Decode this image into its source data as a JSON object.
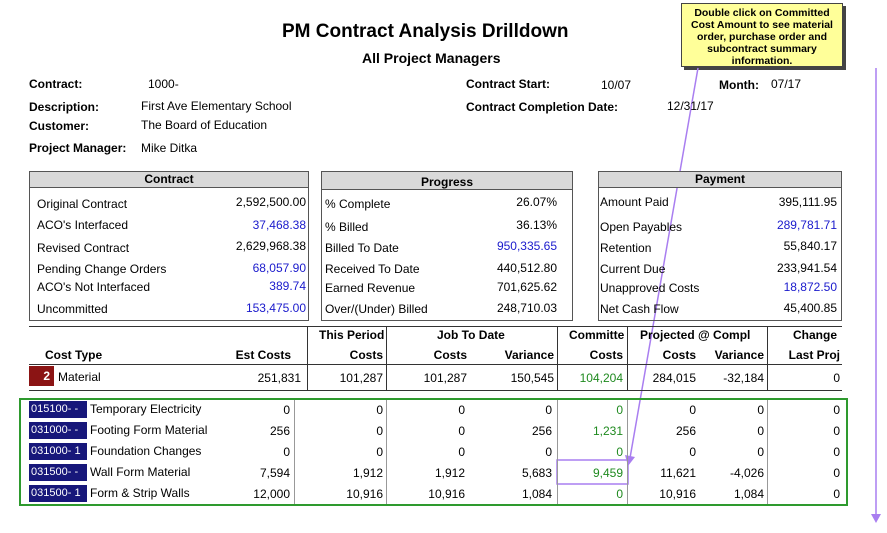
{
  "report": {
    "title": "PM Contract Analysis Drilldown",
    "subtitle": "All Project Managers"
  },
  "callout": "Double click on Committed Cost Amount to see material order, purchase order and subcontract summary information.",
  "header": {
    "contract_label": "Contract:",
    "contract_value": "1000-",
    "description_label": "Description:",
    "description_value": "First Ave Elementary School",
    "customer_label": "Customer:",
    "customer_value": "The Board of Education",
    "pm_label": "Project Manager:",
    "pm_value": "Mike Ditka",
    "start_label": "Contract Start:",
    "start_value": "10/07",
    "month_label": "Month:",
    "month_value": "07/17",
    "completion_label": "Contract Completion Date:",
    "completion_value": "12/31/17"
  },
  "contract_panel": {
    "title": "Contract",
    "rows": [
      {
        "label": "Original Contract",
        "value": "2,592,500.00"
      },
      {
        "label": "ACO's Interfaced",
        "value": "37,468.38"
      },
      {
        "label": "Revised Contract",
        "value": "2,629,968.38"
      },
      {
        "label": "Pending Change Orders",
        "value": "68,057.90"
      },
      {
        "label": "ACO's Not Interfaced",
        "value": "389.74"
      },
      {
        "label": "Uncommitted",
        "value": "153,475.00"
      }
    ]
  },
  "progress_panel": {
    "title": "Progress",
    "rows": [
      {
        "label": "% Complete",
        "value": "26.07%"
      },
      {
        "label": "% Billed",
        "value": "36.13%"
      },
      {
        "label": "Billed To Date",
        "value": "950,335.65"
      },
      {
        "label": "Received To Date",
        "value": "440,512.80"
      },
      {
        "label": "Earned Revenue",
        "value": "701,625.62"
      },
      {
        "label": "Over/(Under) Billed",
        "value": "248,710.03"
      }
    ]
  },
  "payment_panel": {
    "title": "Payment",
    "rows": [
      {
        "label": "Amount Paid",
        "value": "395,111.95"
      },
      {
        "label": "Open Payables",
        "value": "289,781.71"
      },
      {
        "label": "Retention",
        "value": "55,840.17"
      },
      {
        "label": "Current Due",
        "value": "233,941.54"
      },
      {
        "label": "Unapproved Costs",
        "value": "18,872.50"
      },
      {
        "label": "Net Cash Flow",
        "value": "45,400.85"
      }
    ]
  },
  "table": {
    "group_headers": {
      "this_period": "This Period",
      "job_to_date": "Job To Date",
      "committed": "Committe",
      "projected": "Projected @ Compl",
      "change": "Change"
    },
    "columns": {
      "cost_type": "Cost Type",
      "est_costs": "Est Costs",
      "tp_costs": "Costs",
      "jtd_costs": "Costs",
      "jtd_variance": "Variance",
      "committed_costs": "Costs",
      "proj_costs": "Costs",
      "proj_variance": "Variance",
      "change_last": "Last Proj"
    },
    "category": {
      "code": "2",
      "name": "Material",
      "est": "251,831",
      "tp": "101,287",
      "jtd": "101,287",
      "var": "150,545",
      "committed": "104,204",
      "proj": "284,015",
      "pvar": "-32,184",
      "change": "0"
    },
    "rows": [
      {
        "code": "015100-",
        "suffix": "-",
        "name": "Temporary Electricity",
        "est": "0",
        "tp": "0",
        "jtd": "0",
        "var": "0",
        "committed": "0",
        "proj": "0",
        "pvar": "0",
        "change": "0"
      },
      {
        "code": "031000-",
        "suffix": "-",
        "name": "Footing Form Material",
        "est": "256",
        "tp": "0",
        "jtd": "0",
        "var": "256",
        "committed": "1,231",
        "proj": "256",
        "pvar": "0",
        "change": "0"
      },
      {
        "code": "031000-",
        "suffix": "1",
        "name": "Foundation Changes",
        "est": "0",
        "tp": "0",
        "jtd": "0",
        "var": "0",
        "committed": "0",
        "proj": "0",
        "pvar": "0",
        "change": "0"
      },
      {
        "code": "031500-",
        "suffix": "-",
        "name": "Wall Form Material",
        "est": "7,594",
        "tp": "1,912",
        "jtd": "1,912",
        "var": "5,683",
        "committed": "9,459",
        "proj": "11,621",
        "pvar": "-4,026",
        "change": "0"
      },
      {
        "code": "031500-",
        "suffix": "1",
        "name": "Form & Strip Walls",
        "est": "12,000",
        "tp": "10,916",
        "jtd": "10,916",
        "var": "1,084",
        "committed": "0",
        "proj": "10,916",
        "pvar": "1,084",
        "change": "0"
      }
    ]
  },
  "colors": {
    "accent_purple": "#a97ef0",
    "detail_border": "#2e9a2e",
    "code_bg": "#17177a",
    "category_bg": "#8b1414",
    "callout_bg": "#ffff99"
  }
}
